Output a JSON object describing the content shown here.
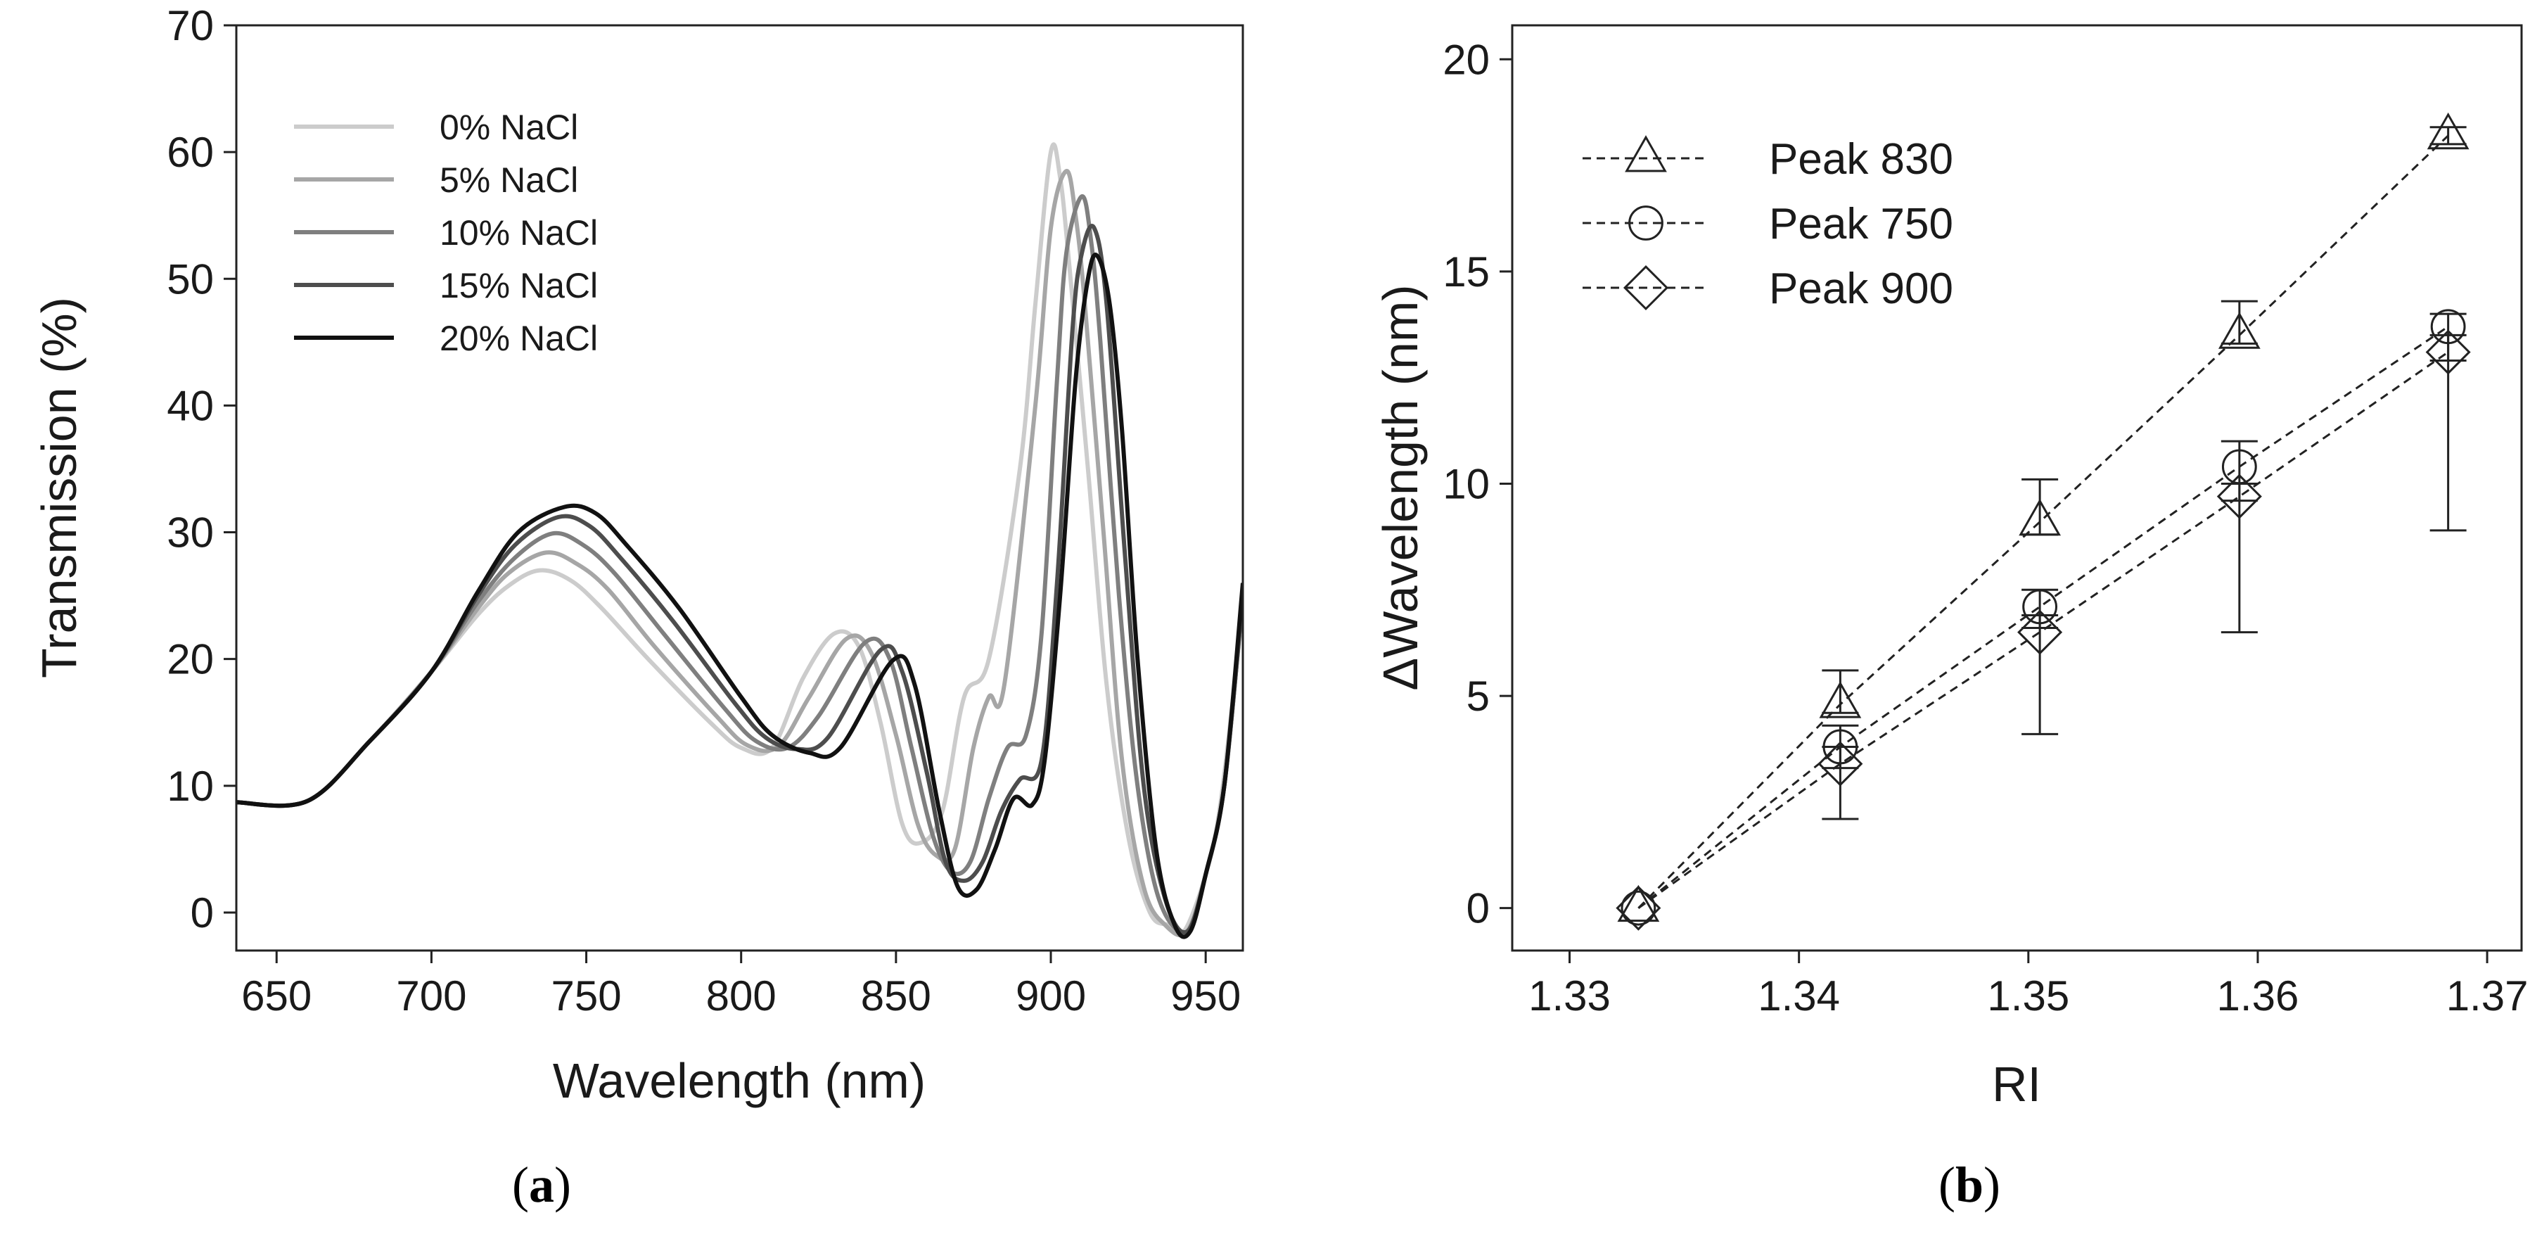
{
  "panels": {
    "a": {
      "caption_open": "(",
      "caption_letter": "a",
      "caption_close": ")"
    },
    "b": {
      "caption_open": "(",
      "caption_letter": "b",
      "caption_close": ")"
    }
  },
  "chart_data": [
    {
      "id": "a",
      "type": "line",
      "title": "",
      "xlabel": "Wavelength (nm)",
      "ylabel": "Transmission (%)",
      "xlim": [
        637,
        962
      ],
      "ylim": [
        -3,
        70
      ],
      "xticks": [
        650,
        700,
        750,
        800,
        850,
        900,
        950
      ],
      "yticks": [
        0,
        10,
        20,
        30,
        40,
        50,
        60,
        70
      ],
      "legend_position": "top-left",
      "series": [
        {
          "name": "0% NaCl",
          "color": "#cccccc",
          "x": [
            637,
            660,
            680,
            700,
            715,
            725,
            735,
            745,
            755,
            770,
            790,
            800,
            810,
            820,
            830,
            838,
            845,
            852,
            858,
            865,
            872,
            880,
            890,
            895,
            900,
            903,
            906,
            912,
            918,
            925,
            932,
            938,
            943,
            950,
            955,
            962
          ],
          "y": [
            8.7,
            8.8,
            13.5,
            19,
            23.5,
            25.8,
            27,
            26.2,
            24,
            20,
            15,
            13,
            13,
            18.5,
            22,
            21,
            15,
            7,
            5.5,
            8,
            17,
            20,
            35,
            48,
            60,
            58,
            51,
            35,
            18,
            6,
            0,
            -1,
            -1.5,
            3,
            9,
            24
          ]
        },
        {
          "name": "5% NaCl",
          "color": "#a6a6a6",
          "x": [
            637,
            660,
            680,
            700,
            715,
            725,
            737,
            747,
            757,
            772,
            792,
            802,
            812,
            822,
            834,
            842,
            850,
            857,
            863,
            869,
            875,
            880,
            885,
            895,
            900,
            905,
            908,
            911,
            917,
            923,
            930,
            937,
            944,
            950,
            956,
            962
          ],
          "y": [
            8.7,
            8.8,
            13.5,
            19,
            24,
            26.8,
            28.4,
            27.5,
            25.5,
            21,
            15.5,
            13.2,
            13.1,
            17,
            21.6,
            20.5,
            14,
            7,
            4.5,
            5,
            13,
            17,
            18,
            40,
            54,
            58.5,
            55,
            48,
            30,
            12,
            2,
            -1,
            -1.5,
            3,
            10,
            25
          ]
        },
        {
          "name": "10% NaCl",
          "color": "#7f7f7f",
          "x": [
            637,
            660,
            680,
            700,
            715,
            727,
            739,
            749,
            759,
            775,
            795,
            805,
            815,
            825,
            840,
            848,
            855,
            862,
            868,
            874,
            880,
            886,
            892,
            897,
            902,
            905,
            910,
            913,
            916,
            922,
            928,
            935,
            944,
            950,
            956,
            962
          ],
          "y": [
            8.7,
            8.8,
            13.5,
            19,
            24.5,
            28,
            29.9,
            29,
            26.8,
            22,
            16,
            13.5,
            13,
            15.5,
            21.3,
            20,
            13,
            6,
            3.2,
            4,
            9,
            13,
            14,
            22,
            42,
            52,
            56.5,
            53,
            45,
            25,
            10,
            1,
            -1.5,
            3,
            10,
            25
          ]
        },
        {
          "name": "15% NaCl",
          "color": "#4d4d4d",
          "x": [
            637,
            660,
            680,
            700,
            715,
            727,
            741,
            751,
            761,
            778,
            798,
            808,
            818,
            828,
            845,
            852,
            860,
            866,
            872,
            878,
            884,
            890,
            897,
            902,
            907,
            910,
            914,
            918,
            924,
            930,
            937,
            944,
            950,
            956,
            962
          ],
          "y": [
            8.7,
            8.8,
            13.5,
            19,
            25,
            29,
            31.2,
            30.5,
            28,
            23,
            16.5,
            13.8,
            12.9,
            13.8,
            20.7,
            19,
            11,
            4,
            2.5,
            4,
            8,
            10.5,
            12,
            26,
            46,
            52,
            54,
            48,
            28,
            10,
            1,
            -1.5,
            3,
            10,
            25
          ]
        },
        {
          "name": "20% NaCl",
          "color": "#111111",
          "x": [
            637,
            660,
            680,
            700,
            715,
            728,
            743,
            753,
            763,
            780,
            800,
            810,
            822,
            832,
            849,
            856,
            864,
            870,
            876,
            882,
            888,
            894,
            898,
            903,
            908,
            912,
            915,
            919,
            923,
            928,
            934,
            940,
            945,
            950,
            956,
            962
          ],
          "y": [
            8.7,
            8.8,
            13.5,
            19,
            25.3,
            30,
            32,
            31.5,
            29,
            24,
            17,
            14,
            12.6,
            13,
            19.9,
            18,
            8,
            2,
            1.8,
            5,
            9,
            8.5,
            12,
            25,
            42,
            50,
            51.8,
            48,
            38,
            20,
            5,
            -1,
            -1.5,
            3,
            10,
            26
          ]
        }
      ]
    },
    {
      "id": "b",
      "type": "line",
      "title": "",
      "xlabel": "RI",
      "ylabel": "ΔWavelength (nm)",
      "xlim": [
        1.3275,
        1.3715
      ],
      "ylim": [
        -1,
        20.8
      ],
      "xticks": [
        1.33,
        1.34,
        1.35,
        1.36,
        1.37
      ],
      "xtick_labels": [
        "1.33",
        "1.34",
        "1.35",
        "1.36",
        "1.37"
      ],
      "yticks": [
        0,
        5,
        10,
        15,
        20
      ],
      "legend_position": "top-left",
      "x": [
        1.333,
        1.3418,
        1.3505,
        1.3592,
        1.3683
      ],
      "series": [
        {
          "name": "Peak 830",
          "marker": "triangle",
          "y": [
            0,
            4.8,
            9.1,
            13.5,
            18.2
          ],
          "err_lo": [
            0,
            4.6,
            8.8,
            13.3,
            18.0
          ],
          "err_hi": [
            0,
            5.6,
            10.1,
            14.3,
            18.4
          ]
        },
        {
          "name": "Peak 750",
          "marker": "circle",
          "y": [
            0,
            3.8,
            7.1,
            10.4,
            13.7
          ],
          "err_lo": [
            0,
            3.3,
            6.6,
            9.6,
            12.9
          ],
          "err_hi": [
            0,
            4.3,
            7.5,
            11.0,
            14.0
          ]
        },
        {
          "name": "Peak 900",
          "marker": "diamond",
          "y": [
            0,
            3.4,
            6.5,
            9.7,
            13.1
          ],
          "err_lo": [
            0,
            2.1,
            4.1,
            6.5,
            8.9
          ],
          "err_hi": [
            0,
            3.8,
            6.9,
            10.0,
            13.5
          ]
        }
      ]
    }
  ]
}
